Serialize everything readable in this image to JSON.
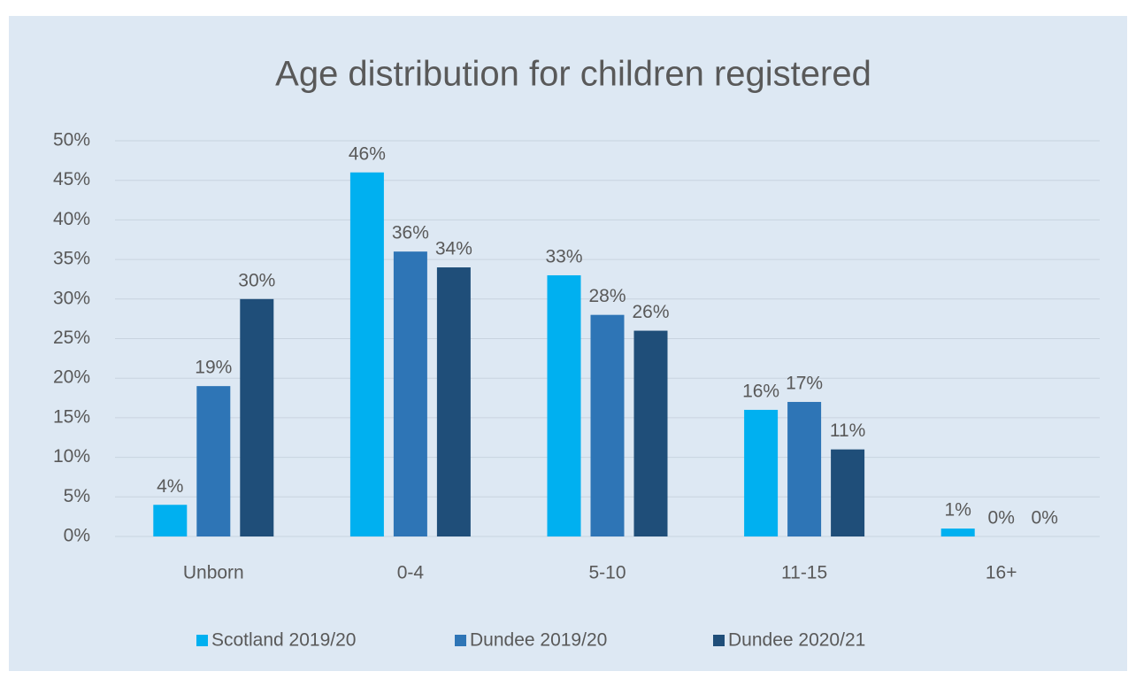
{
  "chart_data": {
    "type": "bar",
    "title": "Age distribution for children registered",
    "categories": [
      "Unborn",
      "0-4",
      "5-10",
      "11-15",
      "16+"
    ],
    "series": [
      {
        "name": "Scotland 2019/20",
        "color": "#00b0f0",
        "values": [
          4,
          46,
          33,
          16,
          1
        ],
        "value_labels": [
          "4%",
          "46%",
          "33%",
          "16%",
          "1%"
        ]
      },
      {
        "name": "Dundee 2019/20",
        "color": "#2e75b6",
        "values": [
          19,
          36,
          28,
          17,
          0
        ],
        "value_labels": [
          "19%",
          "36%",
          "28%",
          "17%",
          "0%"
        ]
      },
      {
        "name": "Dundee 2020/21",
        "color": "#1f4e79",
        "values": [
          30,
          34,
          26,
          11,
          0
        ],
        "value_labels": [
          "30%",
          "34%",
          "26%",
          "11%",
          "0%"
        ]
      }
    ],
    "ylim": [
      0,
      50
    ],
    "yticks": [
      {
        "value": 0,
        "label": "0%"
      },
      {
        "value": 5,
        "label": "5%"
      },
      {
        "value": 10,
        "label": "10%"
      },
      {
        "value": 15,
        "label": "15%"
      },
      {
        "value": 20,
        "label": "20%"
      },
      {
        "value": 25,
        "label": "25%"
      },
      {
        "value": 30,
        "label": "30%"
      },
      {
        "value": 35,
        "label": "35%"
      },
      {
        "value": 40,
        "label": "40%"
      },
      {
        "value": 45,
        "label": "45%"
      },
      {
        "value": 50,
        "label": "50%"
      }
    ],
    "grid": true,
    "legend": "bottom"
  }
}
